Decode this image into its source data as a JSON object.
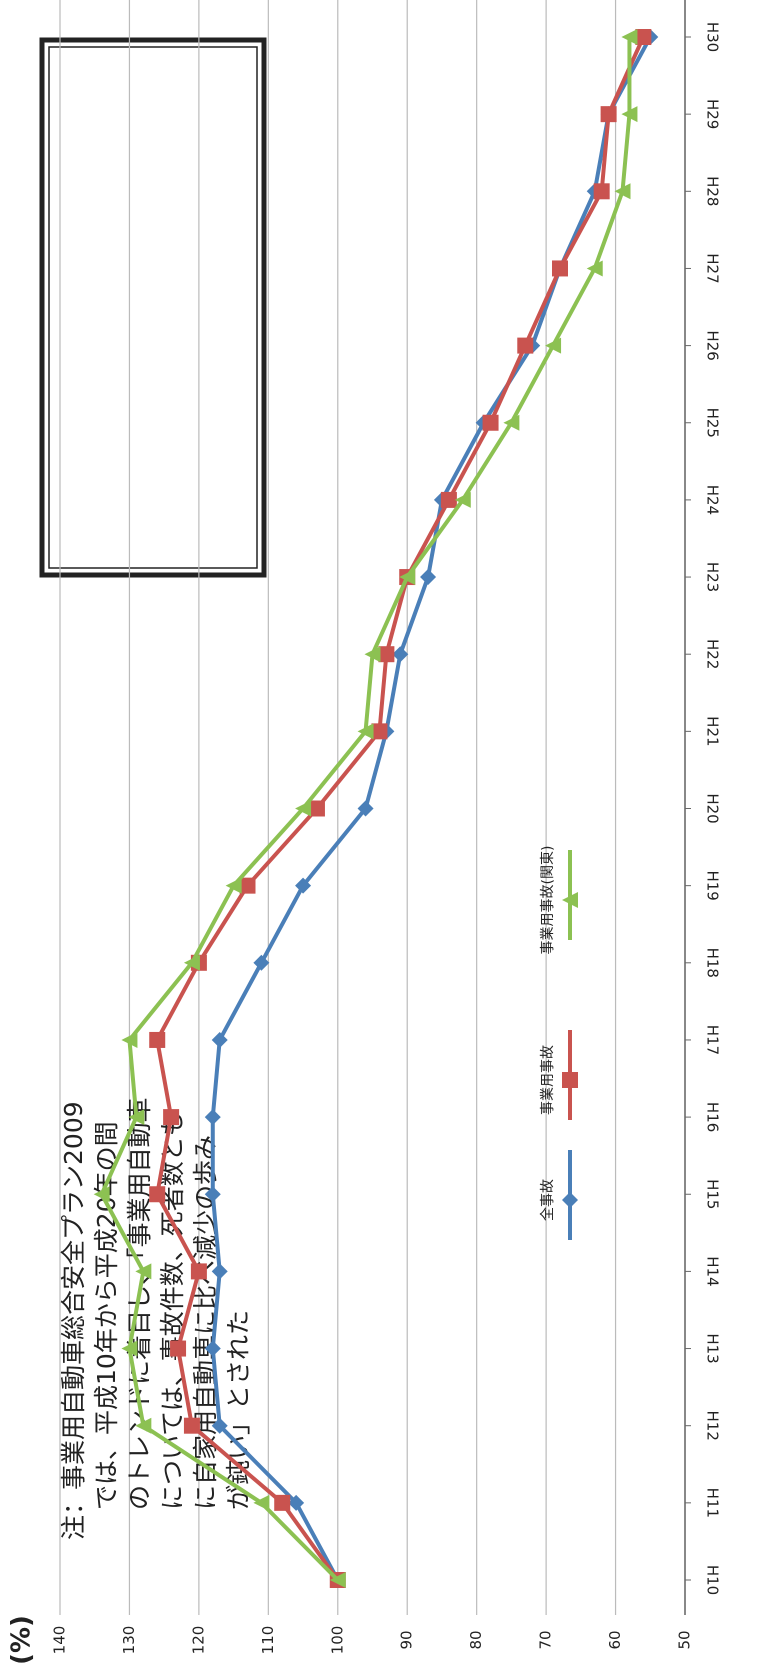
{
  "chart_data": {
    "type": "line",
    "unit_label": "(%)",
    "annotation": [
      "注：事業用自動車総合安全プラン2009",
      "では、平成10年から平成20年の間",
      "のトレンドに着目し、「事業用自動車",
      "については、事故件数、死者数とも",
      "に自家用自動車に比べ減少の歩み",
      "が鈍い」とされた"
    ],
    "categories": [
      "H10",
      "H11",
      "H12",
      "H13",
      "H14",
      "H15",
      "H16",
      "H17",
      "H18",
      "H19",
      "H20",
      "H21",
      "H22",
      "H23",
      "H24",
      "H25",
      "H26",
      "H27",
      "H28",
      "H29",
      "H30"
    ],
    "series": [
      {
        "name": "全事故",
        "color": "#4a7fb8",
        "marker": "diamond",
        "values": [
          100,
          106,
          117,
          118,
          117,
          118,
          118,
          117,
          111,
          105,
          96,
          93,
          91,
          87,
          85,
          79,
          72,
          68,
          63,
          61,
          55
        ]
      },
      {
        "name": "事業用事故",
        "color": "#c9534f",
        "marker": "square",
        "values": [
          100,
          108,
          121,
          123,
          120,
          126,
          124,
          126,
          120,
          113,
          103,
          94,
          93,
          90,
          84,
          78,
          73,
          68,
          62,
          61,
          56
        ]
      },
      {
        "name": "事業用事故(関東)",
        "color": "#8cc152",
        "marker": "triangle",
        "values": [
          100,
          111,
          128,
          130,
          128,
          134,
          129,
          130,
          121,
          115,
          105,
          96,
          95,
          90,
          82,
          75,
          69,
          63,
          59,
          58,
          58
        ]
      }
    ],
    "ylim": [
      140,
      50
    ],
    "yticks": [
      140,
      130,
      120,
      110,
      100,
      90,
      80,
      70,
      60,
      50
    ],
    "grid": true
  }
}
